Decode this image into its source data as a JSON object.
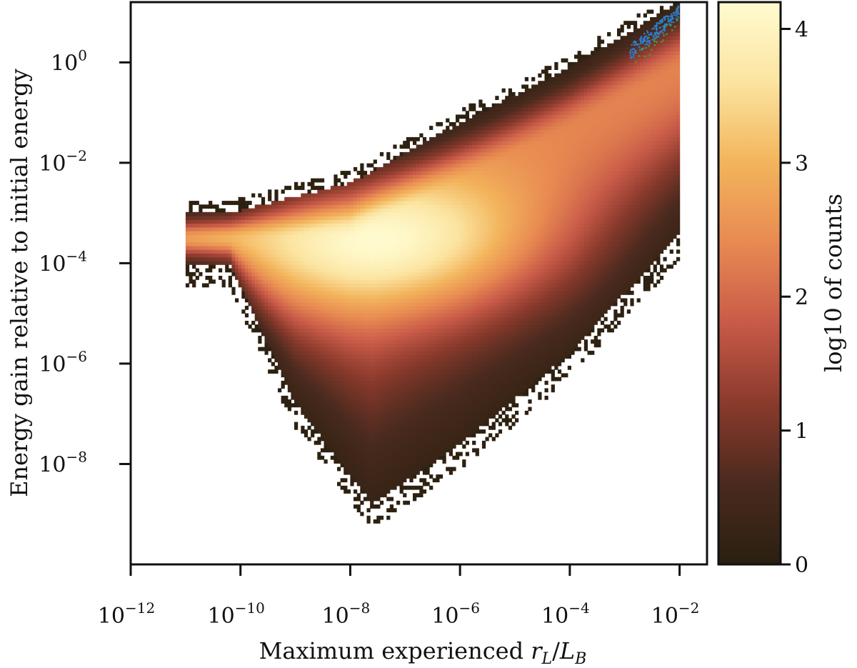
{
  "chart_data": {
    "type": "heatmap",
    "title": "",
    "xlabel": "Maximum experienced r_L/L_B",
    "xlabel_parts": {
      "prefix": "Maximum experienced ",
      "var1": "r",
      "sub1": "L",
      "slash": "/",
      "var2": "L",
      "sub2": "B"
    },
    "ylabel": "Energy gain relative to initial energy",
    "x_scale": "log",
    "y_scale": "log",
    "xlim": [
      -12.0,
      -1.5
    ],
    "ylim": [
      -10.0,
      1.2
    ],
    "x_ticks": [
      {
        "value": -12,
        "base": "10",
        "exp": "−12"
      },
      {
        "value": -10,
        "base": "10",
        "exp": "−10"
      },
      {
        "value": -8,
        "base": "10",
        "exp": "−8"
      },
      {
        "value": -6,
        "base": "10",
        "exp": "−6"
      },
      {
        "value": -4,
        "base": "10",
        "exp": "−4"
      },
      {
        "value": -2,
        "base": "10",
        "exp": "−2"
      }
    ],
    "y_ticks": [
      {
        "value": 0,
        "base": "10",
        "exp": "0"
      },
      {
        "value": -2,
        "base": "10",
        "exp": "−2"
      },
      {
        "value": -4,
        "base": "10",
        "exp": "−4"
      },
      {
        "value": -6,
        "base": "10",
        "exp": "−6"
      },
      {
        "value": -8,
        "base": "10",
        "exp": "−8"
      }
    ],
    "colorbar": {
      "label": "log10 of counts",
      "range": [
        0,
        4.2
      ],
      "ticks": [
        {
          "value": 0,
          "label": "0"
        },
        {
          "value": 1,
          "label": "1"
        },
        {
          "value": 2,
          "label": "2"
        },
        {
          "value": 3,
          "label": "3"
        },
        {
          "value": 4,
          "label": "4"
        }
      ],
      "stops": [
        "#2a2010",
        "#4a2a1e",
        "#8a3a2c",
        "#c85a48",
        "#e88a52",
        "#f3b45c",
        "#fbe4a0",
        "#fffbd0"
      ]
    },
    "density_model": {
      "x_range": [
        -11.0,
        -2.0
      ],
      "main_ridge": [
        [
          -9.6,
          -3.5
        ],
        [
          -8.0,
          -3.5
        ],
        [
          -6.0,
          -2.4
        ],
        [
          -4.0,
          -1.3
        ],
        [
          -2.0,
          -0.1
        ]
      ],
      "upper_edge": [
        [
          -10.2,
          -3.0
        ],
        [
          -8.0,
          -2.4
        ],
        [
          -6.0,
          -1.2
        ],
        [
          -4.0,
          -0.1
        ],
        [
          -2.0,
          1.2
        ]
      ],
      "lower_edge": [
        [
          -10.2,
          -4.0
        ],
        [
          -9.0,
          -6.8
        ],
        [
          -7.6,
          -8.8
        ],
        [
          -6.0,
          -7.6
        ],
        [
          -4.0,
          -5.8
        ],
        [
          -2.0,
          -3.4
        ]
      ],
      "peak": [
        -7.4,
        -3.6
      ],
      "peak_log10_counts": 4.2,
      "scatter_overlay": {
        "blue": {
          "color": "#2a7fd0",
          "x_range": [
            -2.9,
            -2.0
          ],
          "y_range": [
            0.2,
            1.0
          ]
        },
        "green": {
          "color": "#3aa050",
          "x_range": [
            -2.8,
            -2.0
          ],
          "y_range": [
            0.0,
            0.9
          ]
        }
      }
    }
  }
}
